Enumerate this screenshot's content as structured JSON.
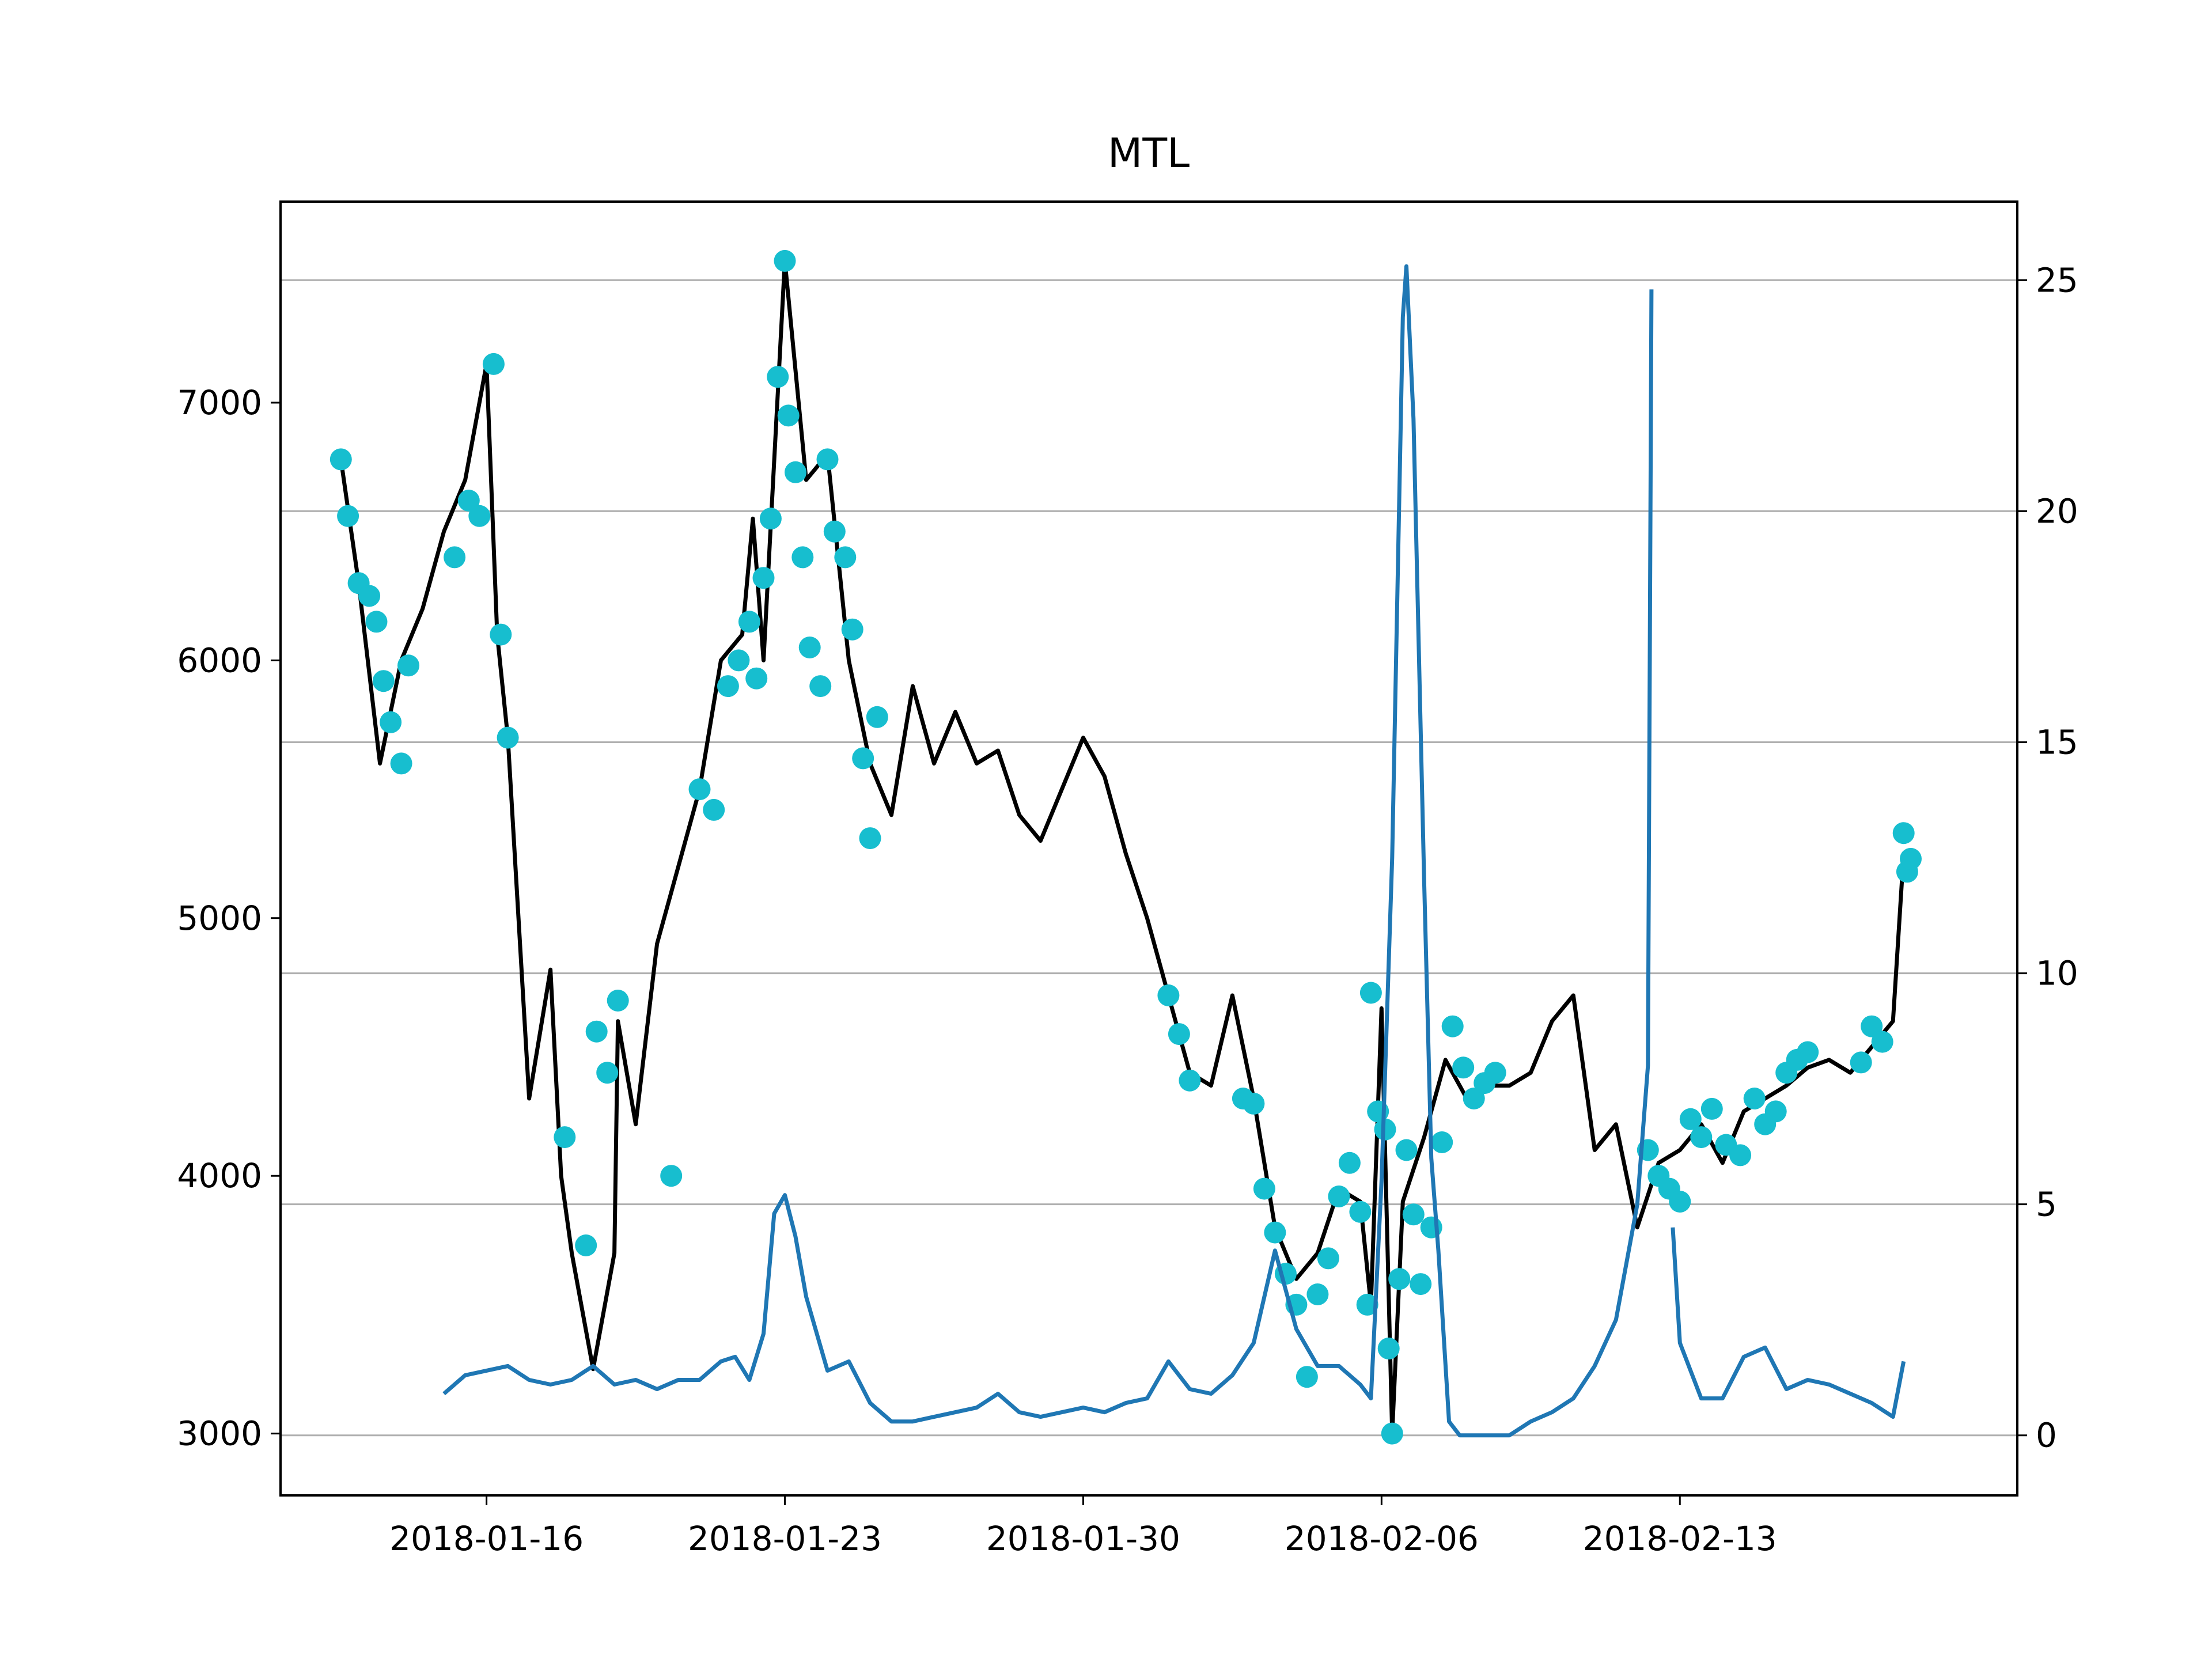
{
  "chart_data": {
    "type": "line",
    "title": "MTL",
    "xlabel": "",
    "ylabel": "",
    "y2label": "",
    "x_axis": {
      "type": "date",
      "range": [
        "2018-01-11T04:00",
        "2018-02-20T22:00"
      ],
      "ticks": [
        "2018-01-16",
        "2018-01-23",
        "2018-01-30",
        "2018-02-06",
        "2018-02-13"
      ]
    },
    "y_left": {
      "range": [
        2760,
        7780
      ],
      "ticks": [
        3000,
        4000,
        5000,
        6000,
        7000
      ],
      "grid": false
    },
    "y_right": {
      "range": [
        -1.3,
        26.7
      ],
      "ticks": [
        0,
        5,
        10,
        15,
        20,
        25
      ],
      "grid": true
    },
    "legend": "none",
    "colors": {
      "price": "#000000",
      "markers": "#17becf",
      "indicator": "#1f77b4",
      "grid": "#b0b0b0"
    },
    "series": [
      {
        "axis": "left",
        "style": "line",
        "x": [
          "2018-01-12T14:00",
          "2018-01-13T00:00",
          "2018-01-13T12:00",
          "2018-01-14T00:00",
          "2018-01-14T12:00",
          "2018-01-15T00:00",
          "2018-01-15T12:00",
          "2018-01-16T00:00",
          "2018-01-16T06:00",
          "2018-01-16T12:00",
          "2018-01-17T00:00",
          "2018-01-17T12:00",
          "2018-01-17T18:00",
          "2018-01-18T00:00",
          "2018-01-18T12:00",
          "2018-01-19T00:00",
          "2018-01-19T02:00",
          "2018-01-19T12:00",
          "2018-01-20T00:00",
          "2018-01-20T12:00",
          "2018-01-21T00:00",
          "2018-01-21T12:00",
          "2018-01-22T00:00",
          "2018-01-22T06:00",
          "2018-01-22T12:00",
          "2018-01-23T00:00",
          "2018-01-23T12:00",
          "2018-01-24T00:00",
          "2018-01-24T12:00",
          "2018-01-25T00:00",
          "2018-01-25T12:00",
          "2018-01-26T00:00",
          "2018-01-26T12:00",
          "2018-01-27T00:00",
          "2018-01-27T12:00",
          "2018-01-28T00:00",
          "2018-01-28T12:00",
          "2018-01-29T00:00",
          "2018-01-29T12:00",
          "2018-01-30T00:00",
          "2018-01-30T12:00",
          "2018-01-31T00:00",
          "2018-01-31T12:00",
          "2018-02-01T00:00",
          "2018-02-01T12:00",
          "2018-02-02T00:00",
          "2018-02-02T12:00",
          "2018-02-03T00:00",
          "2018-02-03T12:00",
          "2018-02-04T00:00",
          "2018-02-04T12:00",
          "2018-02-05T00:00",
          "2018-02-05T12:00",
          "2018-02-05T18:00",
          "2018-02-06T00:00",
          "2018-02-06T06:00",
          "2018-02-06T12:00",
          "2018-02-07T00:00",
          "2018-02-07T12:00",
          "2018-02-08T00:00",
          "2018-02-08T12:00",
          "2018-02-09T00:00",
          "2018-02-09T12:00",
          "2018-02-10T00:00",
          "2018-02-10T12:00",
          "2018-02-11T00:00",
          "2018-02-11T12:00",
          "2018-02-12T00:00",
          "2018-02-12T12:00",
          "2018-02-13T00:00",
          "2018-02-13T12:00",
          "2018-02-14T00:00",
          "2018-02-14T12:00",
          "2018-02-15T00:00",
          "2018-02-15T12:00",
          "2018-02-16T00:00",
          "2018-02-16T12:00",
          "2018-02-17T00:00",
          "2018-02-17T12:00",
          "2018-02-18T00:00",
          "2018-02-18T06:00"
        ],
        "y": [
          6780,
          6300,
          5600,
          6000,
          6200,
          6500,
          6700,
          7150,
          6100,
          5700,
          4300,
          4800,
          4000,
          3700,
          3250,
          3700,
          4600,
          4200,
          4900,
          5200,
          5500,
          6000,
          6100,
          6550,
          6000,
          7550,
          6700,
          6800,
          6000,
          5600,
          5400,
          5900,
          5600,
          5800,
          5600,
          5650,
          5400,
          5300,
          5500,
          5700,
          5550,
          5250,
          5000,
          4700,
          4400,
          4350,
          4700,
          4300,
          3800,
          3600,
          3700,
          3950,
          3900,
          3500,
          4650,
          3000,
          3900,
          4150,
          4450,
          4300,
          4350,
          4350,
          4400,
          4600,
          4700,
          4100,
          4200,
          3800,
          4050,
          4100,
          4200,
          4050,
          4250,
          4300,
          4350,
          4420,
          4450,
          4400,
          4500,
          4600,
          5250
        ]
      },
      {
        "axis": "left",
        "style": "markers",
        "x": [
          "2018-01-12T14:00",
          "2018-01-12T18:00",
          "2018-01-13T00:00",
          "2018-01-13T06:00",
          "2018-01-13T10:00",
          "2018-01-13T14:00",
          "2018-01-13T18:00",
          "2018-01-14T00:00",
          "2018-01-14T04:00",
          "2018-01-15T06:00",
          "2018-01-15T14:00",
          "2018-01-15T20:00",
          "2018-01-16T04:00",
          "2018-01-16T08:00",
          "2018-01-16T12:00",
          "2018-01-17T20:00",
          "2018-01-18T08:00",
          "2018-01-18T14:00",
          "2018-01-18T20:00",
          "2018-01-19T02:00",
          "2018-01-20T08:00",
          "2018-01-21T00:00",
          "2018-01-21T08:00",
          "2018-01-21T16:00",
          "2018-01-21T22:00",
          "2018-01-22T04:00",
          "2018-01-22T08:00",
          "2018-01-22T12:00",
          "2018-01-22T16:00",
          "2018-01-22T20:00",
          "2018-01-23T00:00",
          "2018-01-23T02:00",
          "2018-01-23T06:00",
          "2018-01-23T10:00",
          "2018-01-23T14:00",
          "2018-01-23T20:00",
          "2018-01-24T00:00",
          "2018-01-24T04:00",
          "2018-01-24T10:00",
          "2018-01-24T14:00",
          "2018-01-24T20:00",
          "2018-01-25T00:00",
          "2018-01-25T04:00",
          "2018-02-01T00:00",
          "2018-02-01T06:00",
          "2018-02-01T12:00",
          "2018-02-02T18:00",
          "2018-02-03T00:00",
          "2018-02-03T06:00",
          "2018-02-03T12:00",
          "2018-02-03T18:00",
          "2018-02-04T00:00",
          "2018-02-04T06:00",
          "2018-02-04T12:00",
          "2018-02-04T18:00",
          "2018-02-05T00:00",
          "2018-02-05T06:00",
          "2018-02-05T12:00",
          "2018-02-05T16:00",
          "2018-02-05T18:00",
          "2018-02-05T22:00",
          "2018-02-06T02:00",
          "2018-02-06T04:00",
          "2018-02-06T06:00",
          "2018-02-06T10:00",
          "2018-02-06T14:00",
          "2018-02-06T18:00",
          "2018-02-06T22:00",
          "2018-02-07T04:00",
          "2018-02-07T10:00",
          "2018-02-07T16:00",
          "2018-02-07T22:00",
          "2018-02-08T04:00",
          "2018-02-08T10:00",
          "2018-02-08T16:00",
          "2018-02-12T06:00",
          "2018-02-12T12:00",
          "2018-02-12T18:00",
          "2018-02-13T00:00",
          "2018-02-13T06:00",
          "2018-02-13T12:00",
          "2018-02-13T18:00",
          "2018-02-14T02:00",
          "2018-02-14T10:00",
          "2018-02-14T18:00",
          "2018-02-15T00:00",
          "2018-02-15T06:00",
          "2018-02-15T12:00",
          "2018-02-15T18:00",
          "2018-02-16T00:00",
          "2018-02-17T06:00",
          "2018-02-17T12:00",
          "2018-02-17T18:00",
          "2018-02-18T06:00",
          "2018-02-18T08:00",
          "2018-02-18T10:00"
        ],
        "y": [
          6780,
          6560,
          6300,
          6250,
          6150,
          5920,
          5760,
          5600,
          5980,
          6400,
          6620,
          6560,
          7150,
          6100,
          5700,
          4150,
          3730,
          4560,
          4400,
          4680,
          4000,
          5500,
          5420,
          5900,
          6000,
          6150,
          5930,
          6320,
          6550,
          7100,
          7550,
          6950,
          6730,
          6400,
          6050,
          5900,
          6780,
          6500,
          6400,
          6120,
          5620,
          5310,
          5780,
          4700,
          4550,
          4370,
          4300,
          4280,
          3950,
          3780,
          3620,
          3500,
          3220,
          3540,
          3680,
          3920,
          4050,
          3860,
          3500,
          4710,
          4250,
          4180,
          3330,
          3000,
          3600,
          4100,
          3850,
          3580,
          3800,
          4130,
          4580,
          4420,
          4300,
          4360,
          4400,
          4100,
          4000,
          3950,
          3900,
          4220,
          4150,
          4260,
          4120,
          4080,
          4300,
          4200,
          4250,
          4400,
          4450,
          4480,
          4440,
          4580,
          4520,
          5330,
          5180,
          5230
        ]
      },
      {
        "axis": "right",
        "style": "line",
        "x": [
          "2018-01-15T00:00",
          "2018-01-15T12:00",
          "2018-01-16T00:00",
          "2018-01-16T12:00",
          "2018-01-17T00:00",
          "2018-01-17T12:00",
          "2018-01-18T00:00",
          "2018-01-18T12:00",
          "2018-01-19T00:00",
          "2018-01-19T12:00",
          "2018-01-20T00:00",
          "2018-01-20T12:00",
          "2018-01-21T00:00",
          "2018-01-21T12:00",
          "2018-01-21T20:00",
          "2018-01-22T04:00",
          "2018-01-22T12:00",
          "2018-01-22T18:00",
          "2018-01-23T00:00",
          "2018-01-23T06:00",
          "2018-01-23T12:00",
          "2018-01-24T00:00",
          "2018-01-24T12:00",
          "2018-01-25T00:00",
          "2018-01-25T12:00",
          "2018-01-26T00:00",
          "2018-01-26T12:00",
          "2018-01-27T00:00",
          "2018-01-27T12:00",
          "2018-01-28T00:00",
          "2018-01-28T12:00",
          "2018-01-29T00:00",
          "2018-01-29T12:00",
          "2018-01-30T00:00",
          "2018-01-30T12:00",
          "2018-01-31T00:00",
          "2018-01-31T12:00",
          "2018-02-01T00:00",
          "2018-02-01T12:00",
          "2018-02-02T00:00",
          "2018-02-02T12:00",
          "2018-02-03T00:00",
          "2018-02-03T12:00",
          "2018-02-04T00:00",
          "2018-02-04T12:00",
          "2018-02-05T00:00",
          "2018-02-05T12:00",
          "2018-02-05T18:00",
          "2018-02-06T00:00",
          "2018-02-06T06:00",
          "2018-02-06T12:00",
          "2018-02-06T14:00",
          "2018-02-06T18:00",
          "2018-02-07T00:00",
          "2018-02-07T04:00",
          "2018-02-07T08:00",
          "2018-02-07T14:00",
          "2018-02-07T20:00",
          "2018-02-08T02:00",
          "2018-02-08T12:00",
          "2018-02-09T00:00",
          "2018-02-09T12:00",
          "2018-02-10T00:00",
          "2018-02-10T12:00",
          "2018-02-11T00:00",
          "2018-02-11T12:00",
          "2018-02-12T00:00",
          "2018-02-12T06:00",
          "2018-02-12T08:00",
          "2018-02-12T09:00",
          "2018-02-12T20:00",
          "2018-02-13T00:00",
          "2018-02-13T12:00",
          "2018-02-14T00:00",
          "2018-02-14T12:00",
          "2018-02-15T00:00",
          "2018-02-15T12:00",
          "2018-02-16T00:00",
          "2018-02-16T12:00",
          "2018-02-17T00:00",
          "2018-02-17T12:00",
          "2018-02-18T00:00",
          "2018-02-18T06:00"
        ],
        "y": [
          0.9,
          1.3,
          1.4,
          1.5,
          1.2,
          1.1,
          1.2,
          1.5,
          1.1,
          1.2,
          1.0,
          1.2,
          1.2,
          1.6,
          1.7,
          1.2,
          2.2,
          4.8,
          5.2,
          4.3,
          3.0,
          1.4,
          1.6,
          0.7,
          0.3,
          0.3,
          0.4,
          0.5,
          0.6,
          0.9,
          0.5,
          0.4,
          0.5,
          0.6,
          0.5,
          0.7,
          0.8,
          1.6,
          1.0,
          0.9,
          1.3,
          2.0,
          4.0,
          2.3,
          1.5,
          1.5,
          1.1,
          0.8,
          5.5,
          12.5,
          24.2,
          25.3,
          22.0,
          12.0,
          6.0,
          4.0,
          0.3,
          0.0,
          0.0,
          0.0,
          0.0,
          0.3,
          0.5,
          0.8,
          1.5,
          2.5,
          5.0,
          8.0,
          24.8,
          null,
          4.5,
          2.0,
          0.8,
          0.8,
          1.7,
          1.9,
          1.0,
          1.2,
          1.1,
          0.9,
          0.7,
          0.4,
          1.6
        ]
      }
    ]
  }
}
